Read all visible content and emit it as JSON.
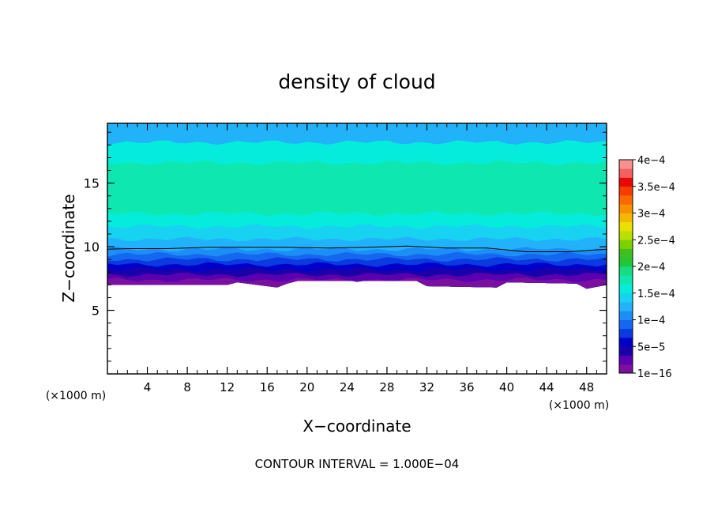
{
  "chart_data": {
    "type": "heatmap",
    "title": "density of cloud",
    "xlabel": "X−coordinate",
    "ylabel": "Z−coordinate",
    "x_units": "(×1000 m)",
    "z_units": "(×1000 m)",
    "xlim": [
      0,
      50
    ],
    "ylim": [
      0,
      19.7
    ],
    "x_ticks": [
      4,
      8,
      12,
      16,
      20,
      24,
      28,
      32,
      36,
      40,
      44,
      48
    ],
    "y_ticks": [
      5,
      10,
      15
    ],
    "contour_interval_text": "CONTOUR INTERVAL = 1.000E−04",
    "colorbar": {
      "labels": [
        {
          "value": 0.0004,
          "text": "4e−4"
        },
        {
          "value": 0.00035,
          "text": "3.5e−4"
        },
        {
          "value": 0.0003,
          "text": "3e−4"
        },
        {
          "value": 0.00025,
          "text": "2.5e−4"
        },
        {
          "value": 0.0002,
          "text": "2e−4"
        },
        {
          "value": 0.00015,
          "text": "1.5e−4"
        },
        {
          "value": 0.0001,
          "text": "1e−4"
        },
        {
          "value": 5e-05,
          "text": "5e−5"
        },
        {
          "value": 1e-16,
          "text": "1e−16"
        }
      ],
      "colors": [
        "#7a0fa0",
        "#5a00b0",
        "#1a00a8",
        "#0000c8",
        "#0a3ae0",
        "#1468f0",
        "#1c8ef6",
        "#22b2fa",
        "#18d2f2",
        "#06ecdc",
        "#0ee8b0",
        "#18dc84",
        "#20c838",
        "#40c020",
        "#7cd000",
        "#b8e000",
        "#ece000",
        "#f4b800",
        "#f89000",
        "#fa6800",
        "#f83c00",
        "#e80a00",
        "#f46060",
        "#f89090"
      ]
    },
    "z_profile": {
      "description_levels": [
        "surface 1e-16 at cloud base",
        "dense core near z=13-17"
      ],
      "cloud_base_x": [
        0,
        12,
        13,
        17,
        18,
        19,
        20,
        31,
        32,
        39,
        40,
        47,
        48,
        50
      ],
      "cloud_base_z": [
        7.0,
        7.0,
        7.2,
        6.8,
        7.1,
        7.3,
        7.3,
        7.3,
        6.9,
        6.8,
        7.2,
        7.1,
        6.7,
        7.0
      ],
      "contour_1e4_x": [
        0,
        2,
        6,
        10,
        14,
        18,
        22,
        26,
        30,
        34,
        38,
        40,
        42,
        46,
        48,
        50
      ],
      "contour_1e4_z": [
        9.8,
        9.85,
        9.85,
        9.95,
        9.95,
        9.95,
        9.9,
        9.95,
        10.05,
        9.9,
        9.9,
        9.75,
        9.6,
        9.6,
        9.7,
        9.8
      ],
      "bands": [
        {
          "z_top": 7.4,
          "color_index": 0
        },
        {
          "z_top": 7.8,
          "color_index": 1
        },
        {
          "z_top": 8.2,
          "color_index": 2
        },
        {
          "z_top": 8.6,
          "color_index": 3
        },
        {
          "z_top": 9.0,
          "color_index": 4
        },
        {
          "z_top": 9.4,
          "color_index": 5
        },
        {
          "z_top": 9.8,
          "color_index": 6
        },
        {
          "z_top": 10.6,
          "color_index": 7
        },
        {
          "z_top": 11.6,
          "color_index": 8
        },
        {
          "z_top": 12.6,
          "color_index": 9
        },
        {
          "z_top": 16.6,
          "color_index": 10
        },
        {
          "z_top": 18.2,
          "color_index": 9
        },
        {
          "z_top": 19.7,
          "color_index": 7
        }
      ]
    }
  }
}
